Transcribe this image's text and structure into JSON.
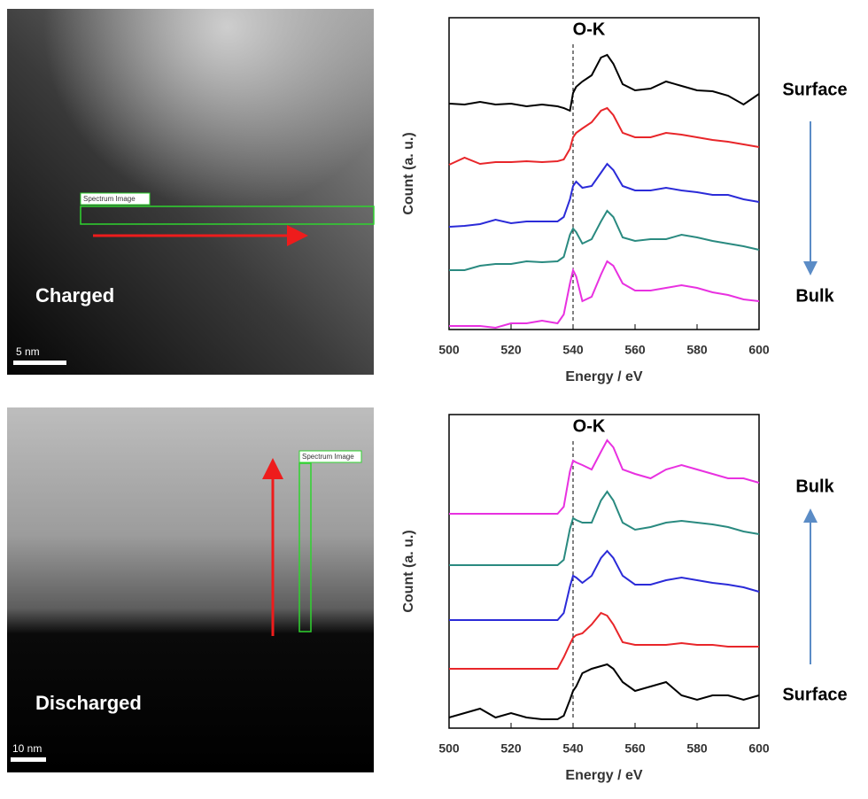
{
  "images": [
    {
      "label": "Charged",
      "scale_bar": "5 nm",
      "box_label": "Spectrum Image"
    },
    {
      "label": "Discharged",
      "scale_bar": "10 nm",
      "box_label": "Spectrum Image"
    }
  ],
  "chart_data": [
    {
      "type": "line",
      "title": "O-K",
      "xlabel": "Energy / eV",
      "ylabel": "Count (a. u.)",
      "xlim": [
        500,
        600
      ],
      "xticks": [
        500,
        520,
        540,
        560,
        580,
        600
      ],
      "ylim": [
        0,
        352
      ],
      "vline": 540,
      "side_labels": [
        "Surface",
        "Bulk"
      ],
      "arrow": "down",
      "x": [
        500,
        505,
        510,
        515,
        520,
        525,
        530,
        535,
        537,
        539,
        540,
        541,
        543,
        546,
        549,
        551,
        553,
        556,
        560,
        565,
        570,
        575,
        580,
        585,
        590,
        595,
        600
      ],
      "series": [
        {
          "color": "#000000",
          "values": [
            255,
            254,
            257,
            254,
            255,
            252,
            254,
            252,
            250,
            247,
            267,
            274,
            280,
            287,
            307,
            310,
            300,
            277,
            270,
            272,
            280,
            275,
            270,
            269,
            264,
            254,
            266
          ]
        },
        {
          "color": "#e8262a",
          "values": [
            186,
            194,
            187,
            189,
            189,
            190,
            189,
            190,
            192,
            204,
            217,
            222,
            227,
            234,
            247,
            250,
            242,
            222,
            217,
            217,
            222,
            220,
            217,
            214,
            212,
            209,
            206
          ]
        },
        {
          "color": "#2b2bd8",
          "values": [
            116,
            117,
            119,
            124,
            120,
            122,
            122,
            122,
            127,
            147,
            162,
            167,
            160,
            162,
            177,
            187,
            180,
            162,
            157,
            157,
            160,
            157,
            155,
            152,
            152,
            147,
            144
          ]
        },
        {
          "color": "#2a8a80",
          "values": [
            67,
            67,
            72,
            74,
            74,
            77,
            76,
            77,
            82,
            107,
            114,
            110,
            97,
            102,
            122,
            134,
            127,
            104,
            100,
            102,
            102,
            107,
            104,
            100,
            97,
            94,
            90
          ]
        },
        {
          "color": "#e831e0",
          "values": [
            4,
            4,
            4,
            2,
            7,
            7,
            10,
            7,
            17,
            52,
            67,
            60,
            32,
            37,
            62,
            77,
            72,
            52,
            44,
            44,
            47,
            50,
            47,
            42,
            39,
            34,
            32
          ]
        }
      ]
    },
    {
      "type": "line",
      "title": "O-K",
      "xlabel": "Energy / eV",
      "ylabel": "Count (a. u.)",
      "xlim": [
        500,
        600
      ],
      "xticks": [
        500,
        520,
        540,
        560,
        580,
        600
      ],
      "ylim": [
        0,
        354
      ],
      "vline": 540,
      "side_labels": [
        "Bulk",
        "Surface"
      ],
      "arrow": "up",
      "x": [
        500,
        505,
        510,
        515,
        520,
        525,
        530,
        535,
        537,
        539,
        540,
        541,
        543,
        546,
        549,
        551,
        553,
        556,
        560,
        565,
        570,
        575,
        580,
        585,
        590,
        595,
        600
      ],
      "series": [
        {
          "color": "#e831e0",
          "values": [
            242,
            242,
            242,
            242,
            242,
            242,
            242,
            242,
            250,
            290,
            302,
            300,
            297,
            292,
            312,
            325,
            317,
            292,
            287,
            282,
            292,
            297,
            292,
            287,
            282,
            282,
            277
          ]
        },
        {
          "color": "#2a8a80",
          "values": [
            184,
            184,
            184,
            184,
            184,
            184,
            184,
            184,
            190,
            225,
            237,
            235,
            232,
            232,
            257,
            267,
            257,
            232,
            224,
            227,
            232,
            234,
            232,
            230,
            227,
            222,
            219
          ]
        },
        {
          "color": "#2b2bd8",
          "values": [
            122,
            122,
            122,
            122,
            122,
            122,
            122,
            122,
            130,
            160,
            172,
            170,
            164,
            172,
            192,
            200,
            192,
            172,
            162,
            162,
            167,
            170,
            167,
            164,
            162,
            159,
            154
          ]
        },
        {
          "color": "#e8262a",
          "values": [
            67,
            67,
            67,
            67,
            67,
            67,
            67,
            67,
            80,
            95,
            102,
            105,
            107,
            117,
            130,
            127,
            117,
            97,
            94,
            94,
            94,
            96,
            94,
            94,
            92,
            92,
            92
          ]
        },
        {
          "color": "#000000",
          "values": [
            12,
            17,
            22,
            12,
            17,
            12,
            10,
            10,
            14,
            32,
            42,
            47,
            62,
            67,
            70,
            72,
            67,
            52,
            42,
            47,
            52,
            37,
            32,
            37,
            37,
            32,
            37
          ]
        }
      ]
    }
  ]
}
